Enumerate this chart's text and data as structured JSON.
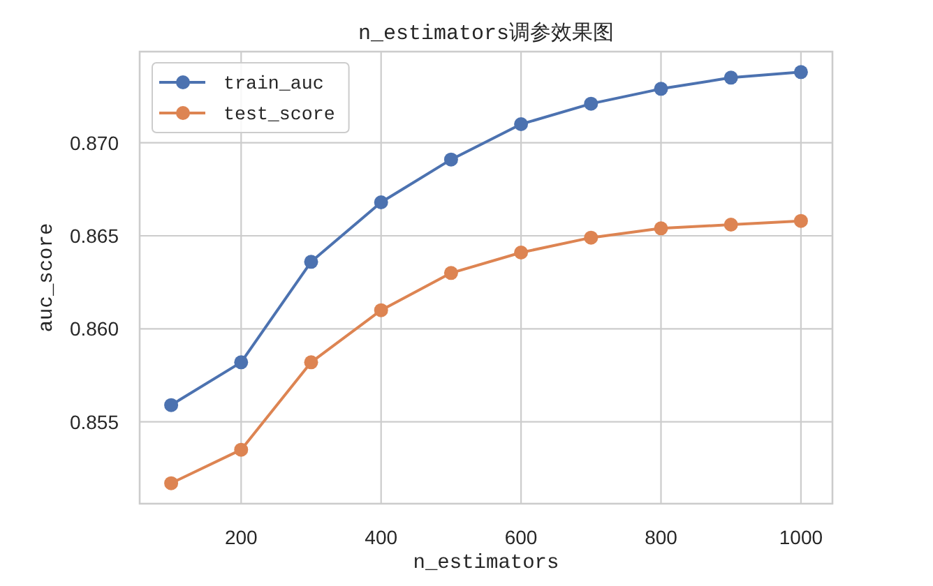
{
  "chart_data": {
    "type": "line",
    "title": "n_estimators调参效果图",
    "xlabel": "n_estimators",
    "ylabel": "auc_score",
    "x": [
      100,
      200,
      300,
      400,
      500,
      600,
      700,
      800,
      900,
      1000
    ],
    "series": [
      {
        "name": "train_auc",
        "color": "#4c72b0",
        "values": [
          0.8559,
          0.8582,
          0.8636,
          0.8668,
          0.8691,
          0.871,
          0.8721,
          0.8729,
          0.8735,
          0.8738
        ]
      },
      {
        "name": "test_score",
        "color": "#dd8452",
        "values": [
          0.8517,
          0.8535,
          0.8582,
          0.861,
          0.863,
          0.8641,
          0.8649,
          0.8654,
          0.8656,
          0.8658
        ]
      }
    ],
    "xlim": [
      55,
      1045
    ],
    "ylim": [
      0.8506,
      0.8749
    ],
    "xticks": [
      200,
      400,
      600,
      800,
      1000
    ],
    "yticks": [
      {
        "value": 0.855,
        "label": "0.855"
      },
      {
        "value": 0.86,
        "label": "0.860"
      },
      {
        "value": 0.865,
        "label": "0.865"
      },
      {
        "value": 0.87,
        "label": "0.870"
      }
    ],
    "grid": true,
    "legend": "top left",
    "marker": "circle",
    "line_style": "solid"
  }
}
